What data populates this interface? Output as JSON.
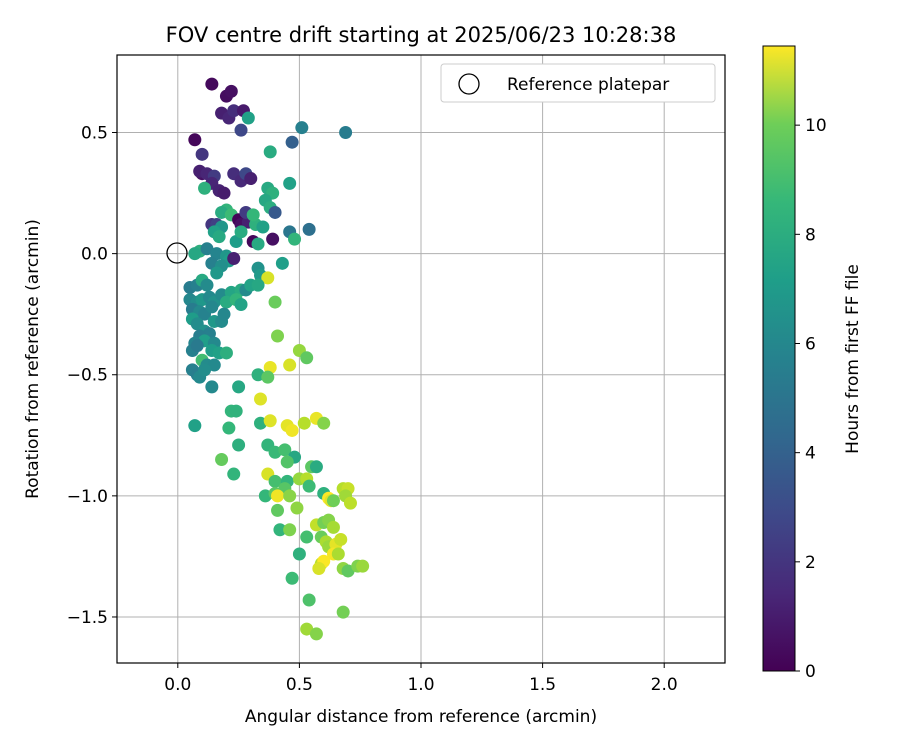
{
  "chart_data": {
    "type": "scatter",
    "title": "FOV centre drift starting at 2025/06/23 10:28:38",
    "xlabel": "Angular distance from reference (arcmin)",
    "ylabel": "Rotation from reference (arcmin)",
    "xlim": [
      -0.25,
      2.25
    ],
    "ylim": [
      -1.69,
      0.82
    ],
    "xticks": [
      0.0,
      0.5,
      1.0,
      1.5,
      2.0
    ],
    "xtick_labels": [
      "0.0",
      "0.5",
      "1.0",
      "1.5",
      "2.0"
    ],
    "yticks": [
      0.5,
      0.0,
      -0.5,
      -1.0,
      -1.5
    ],
    "ytick_labels": [
      "0.5",
      "0.0",
      "−0.5",
      "−1.0",
      "−1.5"
    ],
    "grid": true,
    "legend": {
      "placement": "top-right",
      "entries": [
        "Reference platepar"
      ]
    },
    "reference_point": {
      "x": 0.0,
      "y": 0.0
    },
    "colorbar": {
      "label": "Hours from first FF file",
      "colormap": "viridis",
      "range": [
        0,
        11.45
      ],
      "ticks": [
        0,
        2,
        4,
        6,
        8,
        10
      ],
      "tick_labels": [
        "0",
        "2",
        "4",
        "6",
        "8",
        "10"
      ]
    },
    "points": [
      [
        0.14,
        0.7,
        0.3
      ],
      [
        0.2,
        0.65,
        0.4
      ],
      [
        0.22,
        0.67,
        0.5
      ],
      [
        0.18,
        0.58,
        1.0
      ],
      [
        0.21,
        0.56,
        1.2
      ],
      [
        0.23,
        0.59,
        1.5
      ],
      [
        0.27,
        0.59,
        0.8
      ],
      [
        0.29,
        0.56,
        6.5
      ],
      [
        0.26,
        0.51,
        2.5
      ],
      [
        0.07,
        0.47,
        0.2
      ],
      [
        0.47,
        0.46,
        3.5
      ],
      [
        0.51,
        0.52,
        5.0
      ],
      [
        0.69,
        0.5,
        4.8
      ],
      [
        0.1,
        0.41,
        1.8
      ],
      [
        0.38,
        0.42,
        7.0
      ],
      [
        0.1,
        0.33,
        0.5
      ],
      [
        0.09,
        0.34,
        1.0
      ],
      [
        0.12,
        0.33,
        1.2
      ],
      [
        0.15,
        0.32,
        2.0
      ],
      [
        0.23,
        0.33,
        1.5
      ],
      [
        0.26,
        0.3,
        1.3
      ],
      [
        0.28,
        0.33,
        2.5
      ],
      [
        0.3,
        0.31,
        1.0
      ],
      [
        0.46,
        0.29,
        6.5
      ],
      [
        0.14,
        0.29,
        1.2
      ],
      [
        0.17,
        0.26,
        1.1
      ],
      [
        0.19,
        0.25,
        0.9
      ],
      [
        0.11,
        0.27,
        7.3
      ],
      [
        0.37,
        0.27,
        6.9
      ],
      [
        0.39,
        0.25,
        7.3
      ],
      [
        0.2,
        0.18,
        7.5
      ],
      [
        0.18,
        0.17,
        7.0
      ],
      [
        0.22,
        0.16,
        7.8
      ],
      [
        0.25,
        0.14,
        0.1
      ],
      [
        0.26,
        0.12,
        0.5
      ],
      [
        0.29,
        0.13,
        1.0
      ],
      [
        0.32,
        0.12,
        7.3
      ],
      [
        0.35,
        0.11,
        6.5
      ],
      [
        0.28,
        0.17,
        2.0
      ],
      [
        0.31,
        0.16,
        7.6
      ],
      [
        0.36,
        0.22,
        6.8
      ],
      [
        0.38,
        0.19,
        7.1
      ],
      [
        0.4,
        0.17,
        3.2
      ],
      [
        0.14,
        0.12,
        1.8
      ],
      [
        0.16,
        0.12,
        2.2
      ],
      [
        0.18,
        0.11,
        6.0
      ],
      [
        0.15,
        0.09,
        6.5
      ],
      [
        0.17,
        0.07,
        6.9
      ],
      [
        0.24,
        0.05,
        6.3
      ],
      [
        0.26,
        0.09,
        7.0
      ],
      [
        0.31,
        0.05,
        0.2
      ],
      [
        0.33,
        0.04,
        6.9
      ],
      [
        0.39,
        0.06,
        0.5
      ],
      [
        0.46,
        0.09,
        4.5
      ],
      [
        0.48,
        0.06,
        7.5
      ],
      [
        0.54,
        0.1,
        4.2
      ],
      [
        0.09,
        0.01,
        7.2
      ],
      [
        0.07,
        0.0,
        6.8
      ],
      [
        0.12,
        0.02,
        5.0
      ],
      [
        0.16,
        0.0,
        5.2
      ],
      [
        0.2,
        -0.01,
        6.0
      ],
      [
        0.21,
        -0.03,
        6.3
      ],
      [
        0.23,
        -0.02,
        1.0
      ],
      [
        0.14,
        -0.04,
        5.0
      ],
      [
        0.18,
        -0.05,
        5.7
      ],
      [
        0.16,
        -0.08,
        6.1
      ],
      [
        0.33,
        -0.06,
        5.8
      ],
      [
        0.34,
        -0.09,
        6.2
      ],
      [
        0.43,
        -0.04,
        6.4
      ],
      [
        0.37,
        -0.1,
        10.8
      ],
      [
        0.05,
        -0.14,
        4.8
      ],
      [
        0.08,
        -0.13,
        5.0
      ],
      [
        0.1,
        -0.11,
        6.9
      ],
      [
        0.12,
        -0.13,
        5.5
      ],
      [
        0.05,
        -0.19,
        5.3
      ],
      [
        0.08,
        -0.2,
        5.6
      ],
      [
        0.1,
        -0.19,
        6.1
      ],
      [
        0.13,
        -0.18,
        5.4
      ],
      [
        0.15,
        -0.2,
        5.8
      ],
      [
        0.18,
        -0.17,
        5.5
      ],
      [
        0.22,
        -0.16,
        6.7
      ],
      [
        0.26,
        -0.15,
        7.0
      ],
      [
        0.28,
        -0.15,
        5.5
      ],
      [
        0.3,
        -0.13,
        6.6
      ],
      [
        0.33,
        -0.13,
        6.8
      ],
      [
        0.4,
        -0.2,
        8.8
      ],
      [
        0.06,
        -0.23,
        4.8
      ],
      [
        0.09,
        -0.24,
        5.4
      ],
      [
        0.11,
        -0.25,
        5.1
      ],
      [
        0.14,
        -0.22,
        5.3
      ],
      [
        0.2,
        -0.2,
        7.0
      ],
      [
        0.24,
        -0.19,
        7.5
      ],
      [
        0.26,
        -0.21,
        6.6
      ],
      [
        0.06,
        -0.27,
        6.3
      ],
      [
        0.08,
        -0.29,
        5.6
      ],
      [
        0.11,
        -0.32,
        5.8
      ],
      [
        0.15,
        -0.28,
        6.1
      ],
      [
        0.13,
        -0.33,
        5.0
      ],
      [
        0.18,
        -0.28,
        5.5
      ],
      [
        0.19,
        -0.25,
        5.3
      ],
      [
        0.09,
        -0.34,
        4.9
      ],
      [
        0.11,
        -0.36,
        6.4
      ],
      [
        0.07,
        -0.37,
        5.2
      ],
      [
        0.06,
        -0.4,
        5.0
      ],
      [
        0.08,
        -0.38,
        4.7
      ],
      [
        0.15,
        -0.37,
        5.4
      ],
      [
        0.14,
        -0.4,
        6.3
      ],
      [
        0.17,
        -0.41,
        6.5
      ],
      [
        0.2,
        -0.41,
        7.2
      ],
      [
        0.1,
        -0.44,
        7.9
      ],
      [
        0.12,
        -0.46,
        5.5
      ],
      [
        0.15,
        -0.46,
        5.4
      ],
      [
        0.06,
        -0.48,
        5.0
      ],
      [
        0.08,
        -0.5,
        4.9
      ],
      [
        0.09,
        -0.51,
        5.4
      ],
      [
        0.11,
        -0.48,
        5.6
      ],
      [
        0.41,
        -0.34,
        9.2
      ],
      [
        0.5,
        -0.4,
        9.6
      ],
      [
        0.53,
        -0.43,
        8.6
      ],
      [
        0.38,
        -0.47,
        11.1
      ],
      [
        0.46,
        -0.46,
        10.8
      ],
      [
        0.33,
        -0.5,
        7.3
      ],
      [
        0.37,
        -0.51,
        8.5
      ],
      [
        0.14,
        -0.55,
        5.4
      ],
      [
        0.25,
        -0.55,
        6.8
      ],
      [
        0.34,
        -0.6,
        10.9
      ],
      [
        0.22,
        -0.65,
        7.5
      ],
      [
        0.24,
        -0.65,
        7.4
      ],
      [
        0.07,
        -0.71,
        6.5
      ],
      [
        0.21,
        -0.72,
        7.6
      ],
      [
        0.34,
        -0.7,
        7.3
      ],
      [
        0.38,
        -0.69,
        10.9
      ],
      [
        0.45,
        -0.71,
        11.0
      ],
      [
        0.47,
        -0.73,
        11.2
      ],
      [
        0.52,
        -0.7,
        10.2
      ],
      [
        0.57,
        -0.68,
        11.1
      ],
      [
        0.6,
        -0.7,
        9.3
      ],
      [
        0.25,
        -0.79,
        7.2
      ],
      [
        0.37,
        -0.79,
        7.5
      ],
      [
        0.4,
        -0.82,
        7.7
      ],
      [
        0.44,
        -0.81,
        8.0
      ],
      [
        0.48,
        -0.84,
        6.8
      ],
      [
        0.18,
        -0.85,
        8.7
      ],
      [
        0.45,
        -0.86,
        8.3
      ],
      [
        0.55,
        -0.88,
        8.5
      ],
      [
        0.57,
        -0.88,
        7.0
      ],
      [
        0.23,
        -0.91,
        7.5
      ],
      [
        0.37,
        -0.91,
        10.8
      ],
      [
        0.4,
        -0.94,
        8.0
      ],
      [
        0.45,
        -0.94,
        7.5
      ],
      [
        0.5,
        -0.93,
        9.6
      ],
      [
        0.53,
        -0.93,
        10.2
      ],
      [
        0.44,
        -0.97,
        8.4
      ],
      [
        0.54,
        -0.96,
        7.8
      ],
      [
        0.36,
        -1.0,
        7.6
      ],
      [
        0.4,
        -0.99,
        8.5
      ],
      [
        0.41,
        -1.0,
        11.2
      ],
      [
        0.46,
        -1.0,
        9.4
      ],
      [
        0.6,
        -0.99,
        7.3
      ],
      [
        0.62,
        -1.01,
        11.5
      ],
      [
        0.63,
        -1.02,
        10.9
      ],
      [
        0.64,
        -1.02,
        8.9
      ],
      [
        0.68,
        -0.97,
        10.2
      ],
      [
        0.7,
        -0.97,
        10.5
      ],
      [
        0.69,
        -1.0,
        9.8
      ],
      [
        0.71,
        -1.03,
        10.3
      ],
      [
        0.41,
        -1.06,
        8.6
      ],
      [
        0.49,
        -1.05,
        9.5
      ],
      [
        0.57,
        -1.12,
        10.4
      ],
      [
        0.6,
        -1.11,
        9.0
      ],
      [
        0.62,
        -1.1,
        9.3
      ],
      [
        0.64,
        -1.13,
        9.9
      ],
      [
        0.42,
        -1.14,
        7.5
      ],
      [
        0.46,
        -1.14,
        9.2
      ],
      [
        0.53,
        -1.17,
        8.0
      ],
      [
        0.59,
        -1.17,
        8.8
      ],
      [
        0.61,
        -1.19,
        10.0
      ],
      [
        0.62,
        -1.21,
        9.7
      ],
      [
        0.65,
        -1.2,
        11.0
      ],
      [
        0.67,
        -1.18,
        10.5
      ],
      [
        0.64,
        -1.24,
        11.3
      ],
      [
        0.66,
        -1.24,
        10.0
      ],
      [
        0.5,
        -1.24,
        7.3
      ],
      [
        0.59,
        -1.28,
        10.2
      ],
      [
        0.6,
        -1.27,
        11.4
      ],
      [
        0.58,
        -1.3,
        10.8
      ],
      [
        0.68,
        -1.3,
        9.5
      ],
      [
        0.7,
        -1.31,
        8.6
      ],
      [
        0.74,
        -1.29,
        9.2
      ],
      [
        0.76,
        -1.29,
        9.7
      ],
      [
        0.47,
        -1.34,
        7.8
      ],
      [
        0.54,
        -1.43,
        8.2
      ],
      [
        0.53,
        -1.55,
        9.8
      ],
      [
        0.57,
        -1.57,
        9.3
      ],
      [
        0.68,
        -1.48,
        9.0
      ]
    ]
  }
}
